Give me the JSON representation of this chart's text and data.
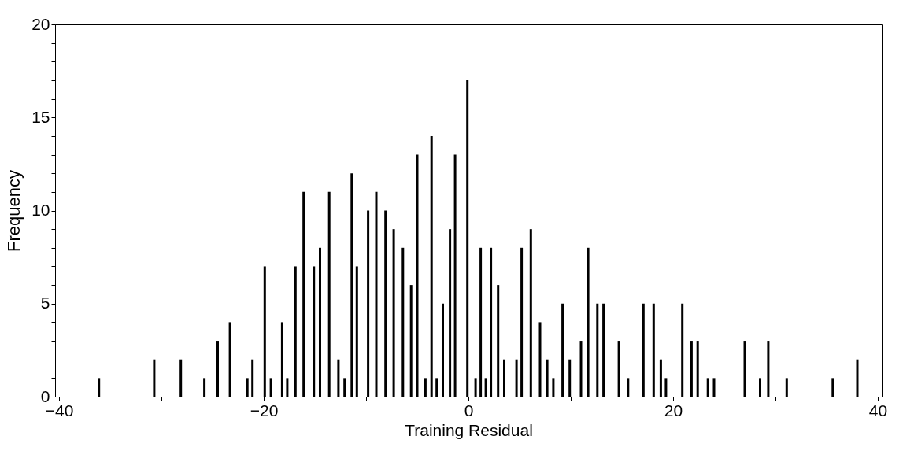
{
  "chart_data": {
    "type": "bar",
    "xlabel": "Training Residual",
    "ylabel": "Frequency",
    "color": "#000000",
    "x": [
      -36.1,
      -30.7,
      -28.1,
      -25.8,
      -24.5,
      -23.3,
      -21.6,
      -21.1,
      -19.9,
      -19.3,
      -18.2,
      -17.7,
      -16.9,
      -16.1,
      -15.1,
      -14.5,
      -13.6,
      -12.7,
      -12.1,
      -11.4,
      -10.9,
      -9.8,
      -9.0,
      -8.1,
      -7.3,
      -6.4,
      -5.6,
      -5.0,
      -4.2,
      -3.6,
      -3.1,
      -2.5,
      -1.8,
      -1.3,
      -0.1,
      0.7,
      1.2,
      1.7,
      2.2,
      2.9,
      3.5,
      4.7,
      5.2,
      6.1,
      7.0,
      7.7,
      8.3,
      9.2,
      9.9,
      11.0,
      11.7,
      12.6,
      13.2,
      14.7,
      15.6,
      17.1,
      18.1,
      18.8,
      19.3,
      20.9,
      21.8,
      22.4,
      23.4,
      24.0,
      27.0,
      28.5,
      29.3,
      31.1,
      35.6,
      38.0
    ],
    "values": [
      1,
      2,
      2,
      1,
      3,
      4,
      1,
      2,
      7,
      1,
      4,
      1,
      7,
      11,
      7,
      8,
      11,
      2,
      1,
      12,
      7,
      10,
      11,
      10,
      9,
      8,
      6,
      13,
      1,
      14,
      1,
      5,
      9,
      13,
      17,
      1,
      8,
      1,
      8,
      6,
      2,
      2,
      8,
      9,
      4,
      2,
      1,
      5,
      2,
      3,
      8,
      5,
      5,
      3,
      1,
      5,
      5,
      2,
      1,
      5,
      3,
      3,
      1,
      1,
      3,
      1,
      3,
      1,
      1,
      2
    ],
    "xlim": [
      -40,
      40
    ],
    "xticks": [
      {
        "value": -40,
        "label": "−40"
      },
      {
        "value": -30,
        "label": null
      },
      {
        "value": -20,
        "label": "−20"
      },
      {
        "value": -10,
        "label": null
      },
      0,
      {
        "value": 10,
        "label": null
      },
      20,
      {
        "value": 30,
        "label": null
      },
      40
    ],
    "ylim": [
      0,
      20
    ],
    "yticks": [
      0,
      {
        "value": 1,
        "label": null
      },
      {
        "value": 2,
        "label": null
      },
      {
        "value": 3,
        "label": null
      },
      {
        "value": 4,
        "label": null
      },
      5,
      {
        "value": 6,
        "label": null
      },
      {
        "value": 7,
        "label": null
      },
      {
        "value": 8,
        "label": null
      },
      {
        "value": 9,
        "label": null
      },
      10,
      {
        "value": 11,
        "label": null
      },
      {
        "value": 12,
        "label": null
      },
      {
        "value": 13,
        "label": null
      },
      {
        "value": 14,
        "label": null
      },
      15,
      {
        "value": 16,
        "label": null
      },
      {
        "value": 17,
        "label": null
      },
      {
        "value": 18,
        "label": null
      },
      {
        "value": 19,
        "label": null
      },
      20
    ],
    "grid": false
  }
}
